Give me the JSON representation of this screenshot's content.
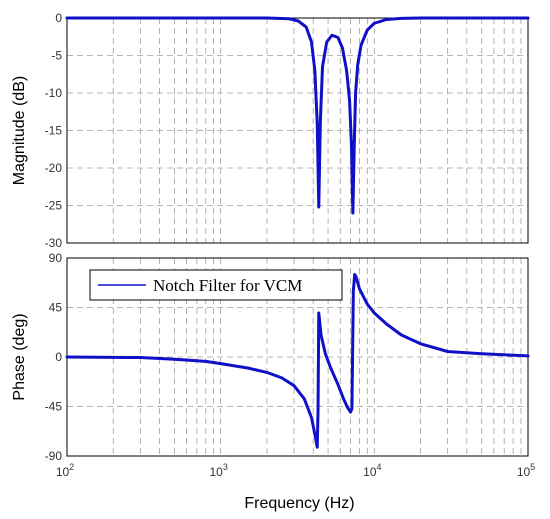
{
  "chart_data": [
    {
      "type": "line",
      "title": "",
      "xlabel": "",
      "ylabel": "Magnitude (dB)",
      "xscale": "log",
      "xlim": [
        100,
        100000
      ],
      "ylim": [
        -30,
        0
      ],
      "grid": true,
      "color": "#1010c8",
      "y_ticks": [
        "-30",
        "-25",
        "-20",
        "-15",
        "-10",
        "-5",
        "0"
      ],
      "y_tick_values": [
        -30,
        -25,
        -20,
        -15,
        -10,
        -5,
        0
      ],
      "series": [
        {
          "x": [
            100,
            500,
            1000,
            2000,
            2800,
            3200,
            3600,
            3900,
            4100,
            4250,
            4350,
            4450,
            4600,
            4900,
            5300,
            5800,
            6200,
            6600,
            6900,
            7100,
            7250,
            7400,
            7550,
            7800,
            8200,
            9000,
            10000,
            12000,
            15000,
            20000,
            100000
          ],
          "y": [
            0,
            0,
            0,
            0,
            -0.1,
            -0.4,
            -1.2,
            -3.2,
            -7,
            -14,
            -25.2,
            -14,
            -6.5,
            -3.2,
            -2.3,
            -2.6,
            -4,
            -7,
            -11,
            -17,
            -26,
            -17,
            -10,
            -6.2,
            -3.6,
            -1.6,
            -0.7,
            -0.2,
            -0.05,
            0,
            0
          ]
        }
      ]
    },
    {
      "type": "line",
      "title": "",
      "xlabel": "Frequency  (Hz)",
      "ylabel": "Phase (deg)",
      "xscale": "log",
      "xlim": [
        100,
        100000
      ],
      "ylim": [
        -90,
        90
      ],
      "grid": true,
      "color": "#1010c8",
      "y_ticks": [
        "-90",
        "-45",
        "0",
        "45",
        "90"
      ],
      "y_tick_values": [
        -90,
        -45,
        0,
        45,
        90
      ],
      "x_ticks": [
        {
          "base": "10",
          "exp": "2",
          "value": 100
        },
        {
          "base": "10",
          "exp": "3",
          "value": 1000
        },
        {
          "base": "10",
          "exp": "4",
          "value": 10000
        },
        {
          "base": "10",
          "exp": "5",
          "value": 100000
        }
      ],
      "legend": {
        "label": "Notch Filter for VCM",
        "placement": "top-left"
      },
      "series": [
        {
          "name": "Notch Filter for VCM",
          "x": [
            100,
            300,
            500,
            800,
            1000,
            1500,
            2000,
            2500,
            3000,
            3500,
            3900,
            4100,
            4250,
            4300,
            4350,
            4500,
            4800,
            5200,
            5800,
            6300,
            6700,
            7000,
            7150,
            7300,
            7450,
            7600,
            8000,
            9000,
            10000,
            12000,
            15000,
            20000,
            30000,
            50000,
            100000
          ],
          "y": [
            0,
            -0.5,
            -2,
            -4,
            -6,
            -10,
            -14,
            -19,
            -26,
            -38,
            -55,
            -70,
            -82,
            -50,
            40,
            20,
            3,
            -10,
            -25,
            -38,
            -46,
            -50,
            -47,
            60,
            75,
            73,
            62,
            48,
            40,
            30,
            20,
            12,
            5,
            3,
            1
          ]
        }
      ]
    }
  ]
}
